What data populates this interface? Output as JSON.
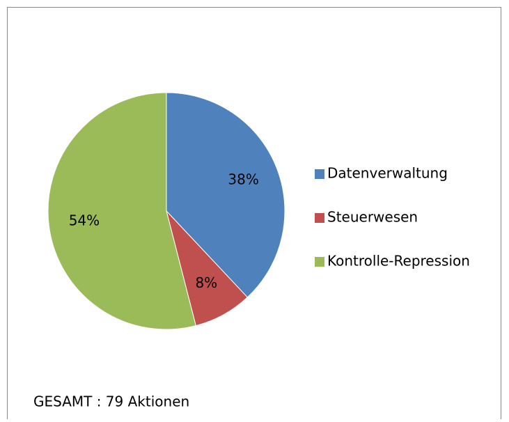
{
  "chart_data": {
    "type": "pie",
    "categories": [
      "Datenverwaltung",
      "Steuerwesen",
      "Kontrolle-Repression"
    ],
    "values": [
      38,
      8,
      54
    ],
    "value_labels": [
      "38%",
      "8%",
      "54%"
    ],
    "colors": [
      "#4f81bd",
      "#c0504d",
      "#9bbb59"
    ],
    "legend": "right",
    "annotation": "GESAMT : 79 Aktionen"
  }
}
